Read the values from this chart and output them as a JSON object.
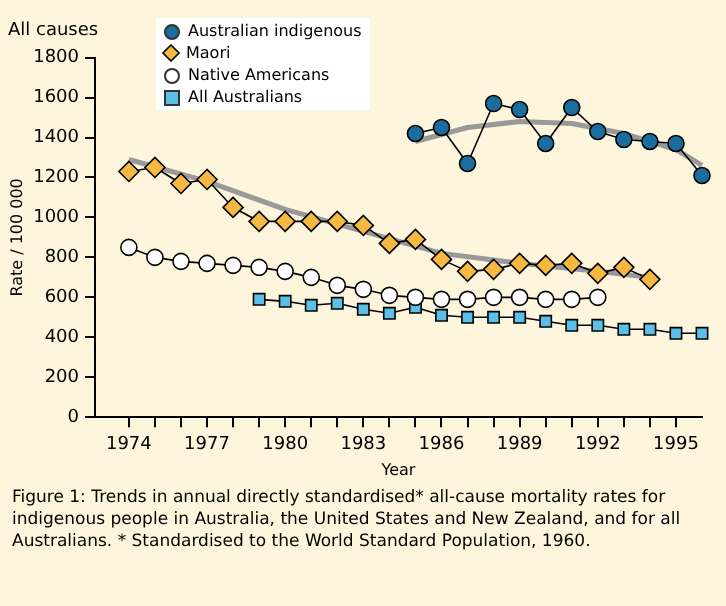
{
  "chart_data": {
    "type": "line",
    "title": "All causes",
    "xlabel": "Year",
    "ylabel": "Rate / 100 000",
    "xlim": [
      1972.7,
      1996
    ],
    "xticks": [
      1974,
      {
        "value": 1975,
        "label": null
      },
      {
        "value": 1976,
        "label": null
      },
      1977,
      {
        "value": 1978,
        "label": null
      },
      {
        "value": 1979,
        "label": null
      },
      1980,
      {
        "value": 1981,
        "label": null
      },
      {
        "value": 1982,
        "label": null
      },
      1983,
      {
        "value": 1984,
        "label": null
      },
      {
        "value": 1985,
        "label": null
      },
      1986,
      {
        "value": 1987,
        "label": null
      },
      {
        "value": 1988,
        "label": null
      },
      1989,
      {
        "value": 1990,
        "label": null
      },
      {
        "value": 1991,
        "label": null
      },
      1992,
      {
        "value": 1993,
        "label": null
      },
      {
        "value": 1994,
        "label": null
      },
      1995
    ],
    "ylim": [
      0,
      1800
    ],
    "yticks": [
      0,
      200,
      400,
      600,
      800,
      1000,
      1200,
      1400,
      1600,
      1800
    ],
    "grid": false,
    "legend": "top left",
    "line_style": "solid",
    "series": [
      {
        "type": "line",
        "color": "#999999",
        "marker": "none",
        "x": [
          1985,
          1987,
          1989,
          1991,
          1993,
          1995,
          1996
        ],
        "values": [
          1380,
          1450,
          1480,
          1470,
          1420,
          1340,
          1260
        ]
      },
      {
        "type": "line",
        "color": "#999999",
        "marker": "none",
        "x": [
          1974,
          1977,
          1980,
          1983,
          1986,
          1989,
          1992,
          1994
        ],
        "values": [
          1290,
          1180,
          1040,
          930,
          820,
          770,
          730,
          700
        ]
      },
      {
        "name": "Australian indigenous",
        "color": "#1a6e9e",
        "marker": "circle",
        "x": [
          1985,
          1986,
          1987,
          1988,
          1989,
          1990,
          1991,
          1992,
          1993,
          1994,
          1995,
          1996
        ],
        "values": [
          1420,
          1450,
          1270,
          1570,
          1540,
          1370,
          1550,
          1430,
          1390,
          1380,
          1370,
          1210
        ]
      },
      {
        "name": "Maori",
        "color": "#f5b942",
        "marker": "diamond",
        "x": [
          1974,
          1975,
          1976,
          1977,
          1978,
          1979,
          1980,
          1981,
          1982,
          1983,
          1984,
          1985,
          1986,
          1987,
          1988,
          1989,
          1990,
          1991,
          1992,
          1993,
          1994
        ],
        "values": [
          1230,
          1250,
          1170,
          1190,
          1050,
          980,
          980,
          980,
          980,
          960,
          870,
          890,
          790,
          730,
          740,
          770,
          760,
          770,
          720,
          750,
          690
        ]
      },
      {
        "name": "Native Americans",
        "color": "#ffffff",
        "marker": "circle",
        "x": [
          1974,
          1975,
          1976,
          1977,
          1978,
          1979,
          1980,
          1981,
          1982,
          1983,
          1984,
          1985,
          1986,
          1987,
          1988,
          1989,
          1990,
          1991,
          1992
        ],
        "values": [
          850,
          800,
          780,
          770,
          760,
          750,
          730,
          700,
          660,
          640,
          610,
          600,
          590,
          590,
          600,
          600,
          590,
          590,
          600
        ]
      },
      {
        "name": "All Australians",
        "color": "#5bc0e8",
        "marker": "square",
        "x": [
          1979,
          1980,
          1981,
          1982,
          1983,
          1984,
          1985,
          1986,
          1987,
          1988,
          1989,
          1990,
          1991,
          1992,
          1993,
          1994,
          1995,
          1996
        ],
        "values": [
          590,
          580,
          560,
          570,
          540,
          520,
          550,
          510,
          500,
          500,
          500,
          480,
          460,
          460,
          440,
          440,
          420,
          420
        ]
      }
    ],
    "annotations": [
      "Figure 1: Trends in annual directly standardised* all-cause mortality rates for indigenous people in Australia, the United States and New Zealand, and for all Australians. * Standardised to the World Standard Population, 1960."
    ]
  }
}
